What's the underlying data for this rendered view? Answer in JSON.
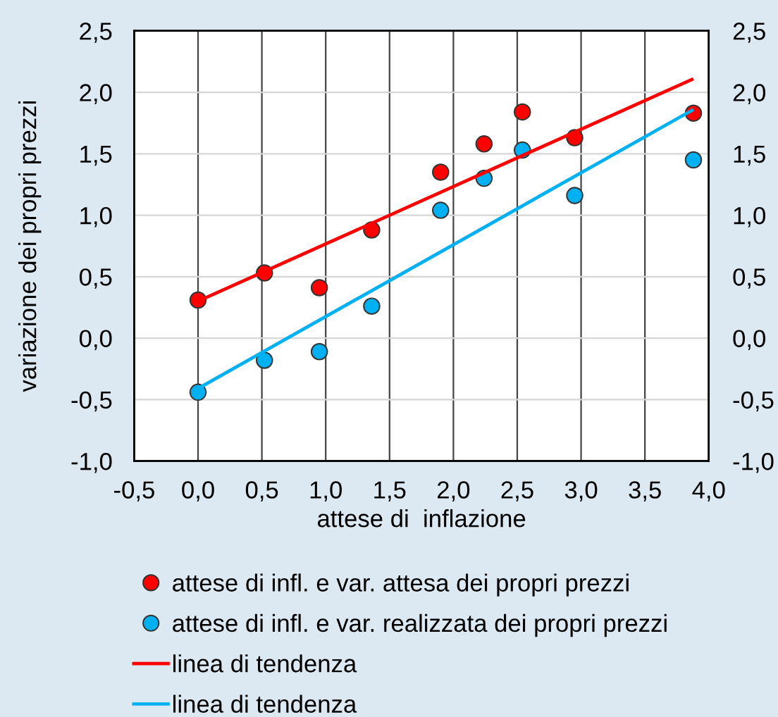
{
  "chart_data": {
    "type": "scatter",
    "xlabel": "attese di  inflazione",
    "ylabel": "variazione dei propri prezzi",
    "series": [
      {
        "name": "attese di infl. e var. attesa dei propri prezzi",
        "marker": "circle",
        "color": "#ff0000",
        "x": [
          0.0,
          0.52,
          0.95,
          1.36,
          1.9,
          2.24,
          2.54,
          2.95,
          3.88
        ],
        "values": [
          0.31,
          0.53,
          0.41,
          0.88,
          1.35,
          1.58,
          1.84,
          1.63,
          1.83
        ]
      },
      {
        "name": "attese di infl. e var. realizzata dei propri prezzi",
        "marker": "circle",
        "color": "#00b0f0",
        "x": [
          0.0,
          0.52,
          0.95,
          1.36,
          1.9,
          2.24,
          2.54,
          2.95,
          3.88
        ],
        "values": [
          -0.44,
          -0.18,
          -0.11,
          0.26,
          1.04,
          1.3,
          1.53,
          1.16,
          1.45
        ]
      },
      {
        "name": "linea di tendenza",
        "type": "line",
        "marker": "none",
        "color": "#ff0000",
        "line_style": "solid",
        "x": [
          0.0,
          3.88
        ],
        "values": [
          0.3,
          2.11
        ]
      },
      {
        "name": "linea di tendenza",
        "type": "line",
        "marker": "none",
        "color": "#00b0f0",
        "line_style": "solid",
        "x": [
          0.0,
          3.88
        ],
        "values": [
          -0.41,
          1.86
        ]
      }
    ],
    "xlim": [
      -0.5,
      4.0
    ],
    "xticks": [
      {
        "value": -0.5,
        "label": "-0,5"
      },
      {
        "value": 0.0,
        "label": "0,0"
      },
      {
        "value": 0.5,
        "label": "0,5"
      },
      {
        "value": 1.0,
        "label": "1,0"
      },
      {
        "value": 1.5,
        "label": "1,5"
      },
      {
        "value": 2.0,
        "label": "2,0"
      },
      {
        "value": 2.5,
        "label": "2,5"
      },
      {
        "value": 3.0,
        "label": "3,0"
      },
      {
        "value": 3.5,
        "label": "3,5"
      },
      {
        "value": 4.0,
        "label": "4,0"
      }
    ],
    "ylim": [
      -1.0,
      2.5
    ],
    "yticks": [
      {
        "value": -1.0,
        "label": "-1,0"
      },
      {
        "value": -0.5,
        "label": "-0,5"
      },
      {
        "value": 0.0,
        "label": "0,0"
      },
      {
        "value": 0.5,
        "label": "0,5"
      },
      {
        "value": 1.0,
        "label": "1,0"
      },
      {
        "value": 1.5,
        "label": "1,5"
      },
      {
        "value": 2.0,
        "label": "2,0"
      },
      {
        "value": 2.5,
        "label": "2,5"
      }
    ],
    "y2lim": [
      -1.0,
      2.5
    ],
    "y2ticks": [
      {
        "value": -1.0,
        "label": "-1,0"
      },
      {
        "value": -0.5,
        "label": "-0,5"
      },
      {
        "value": 0.0,
        "label": "0,0"
      },
      {
        "value": 0.5,
        "label": "0,5"
      },
      {
        "value": 1.0,
        "label": "1,0"
      },
      {
        "value": 1.5,
        "label": "1,5"
      },
      {
        "value": 2.0,
        "label": "2,0"
      },
      {
        "value": 2.5,
        "label": "2,5"
      }
    ],
    "grid": true,
    "legend": "bottom"
  }
}
